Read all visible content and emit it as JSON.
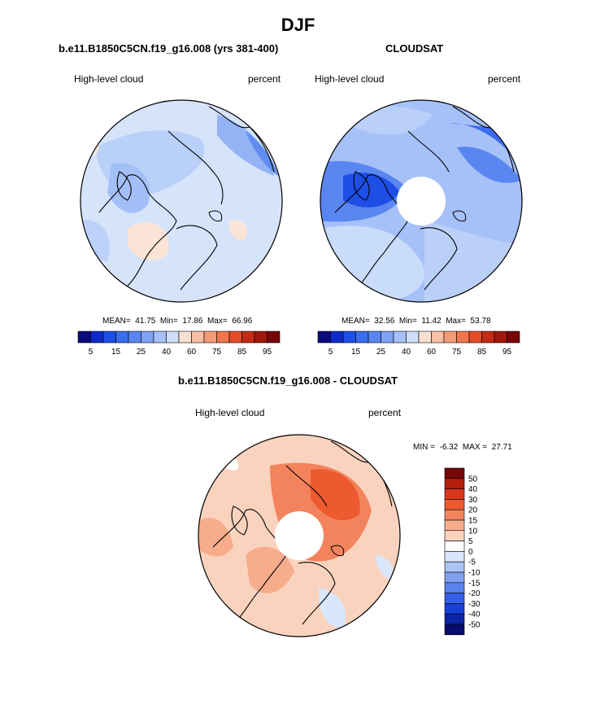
{
  "figure_title": "DJF",
  "panels": {
    "model": {
      "title": "b.e11.B1850C5CN.f19_g16.008 (yrs 381-400)",
      "left_label": "High-level cloud",
      "right_label": "percent",
      "stats": "MEAN=  41.75  Min=  17.86  Max=  66.96"
    },
    "obs": {
      "title": "CLOUDSAT",
      "left_label": "High-level cloud",
      "right_label": "percent",
      "stats": "MEAN=  32.56  Min=  11.42  Max=  53.78"
    },
    "diff": {
      "title": "b.e11.B1850C5CN.f19_g16.008 - CLOUDSAT",
      "left_label": "High-level cloud",
      "right_label": "percent",
      "stats": "MIN =  -6.32  MAX =  27.71"
    }
  },
  "colorbar_abs": {
    "colors": [
      "#0a0a78",
      "#0c2bc8",
      "#1e4ee6",
      "#3c6df0",
      "#5a86f2",
      "#7ea2f5",
      "#a6c1f8",
      "#cfdffb",
      "#fbe0d2",
      "#f8c0a4",
      "#f49c78",
      "#ef7650",
      "#e44c2a",
      "#c42b16",
      "#9e170c",
      "#750707"
    ],
    "tick_labels": [
      "5",
      "15",
      "25",
      "40",
      "60",
      "75",
      "85",
      "95"
    ]
  },
  "colorbar_diff": {
    "colors": [
      "#750707",
      "#b51e0d",
      "#d8361a",
      "#ee5a2f",
      "#f3835c",
      "#f7ac8c",
      "#fad3bf",
      "#ffffff",
      "#d9e6fb",
      "#aac4f6",
      "#7f9ff1",
      "#5a80ee",
      "#3560ea",
      "#1840d9",
      "#0c24a6",
      "#070c6e"
    ],
    "tick_labels": [
      "50",
      "40",
      "30",
      "20",
      "15",
      "10",
      "5",
      "0",
      "-5",
      "-10",
      "-15",
      "-20",
      "-30",
      "-40",
      "-50"
    ]
  },
  "chart_data": [
    {
      "type": "heatmap",
      "projection": "north-polar-stereographic",
      "title": "b.e11.B1850C5CN.f19_g16.008 (yrs 381-400)",
      "variable": "High-level cloud",
      "units": "percent",
      "mean": 41.75,
      "min": 17.86,
      "max": 66.96,
      "levels": [
        5,
        10,
        15,
        20,
        25,
        30,
        40,
        50,
        60,
        65,
        75,
        80,
        85,
        90,
        95
      ]
    },
    {
      "type": "heatmap",
      "projection": "north-polar-stereographic",
      "title": "CLOUDSAT",
      "variable": "High-level cloud",
      "units": "percent",
      "mean": 32.56,
      "min": 11.42,
      "max": 53.78,
      "missing_region": "pole (white disc)"
    },
    {
      "type": "heatmap",
      "projection": "north-polar-stereographic",
      "title": "b.e11.B1850C5CN.f19_g16.008 - CLOUDSAT",
      "variable": "High-level cloud",
      "units": "percent",
      "min": -6.32,
      "max": 27.71,
      "levels": [
        -50,
        -40,
        -30,
        -20,
        -15,
        -10,
        -5,
        0,
        5,
        10,
        15,
        20,
        30,
        40,
        50
      ]
    }
  ]
}
